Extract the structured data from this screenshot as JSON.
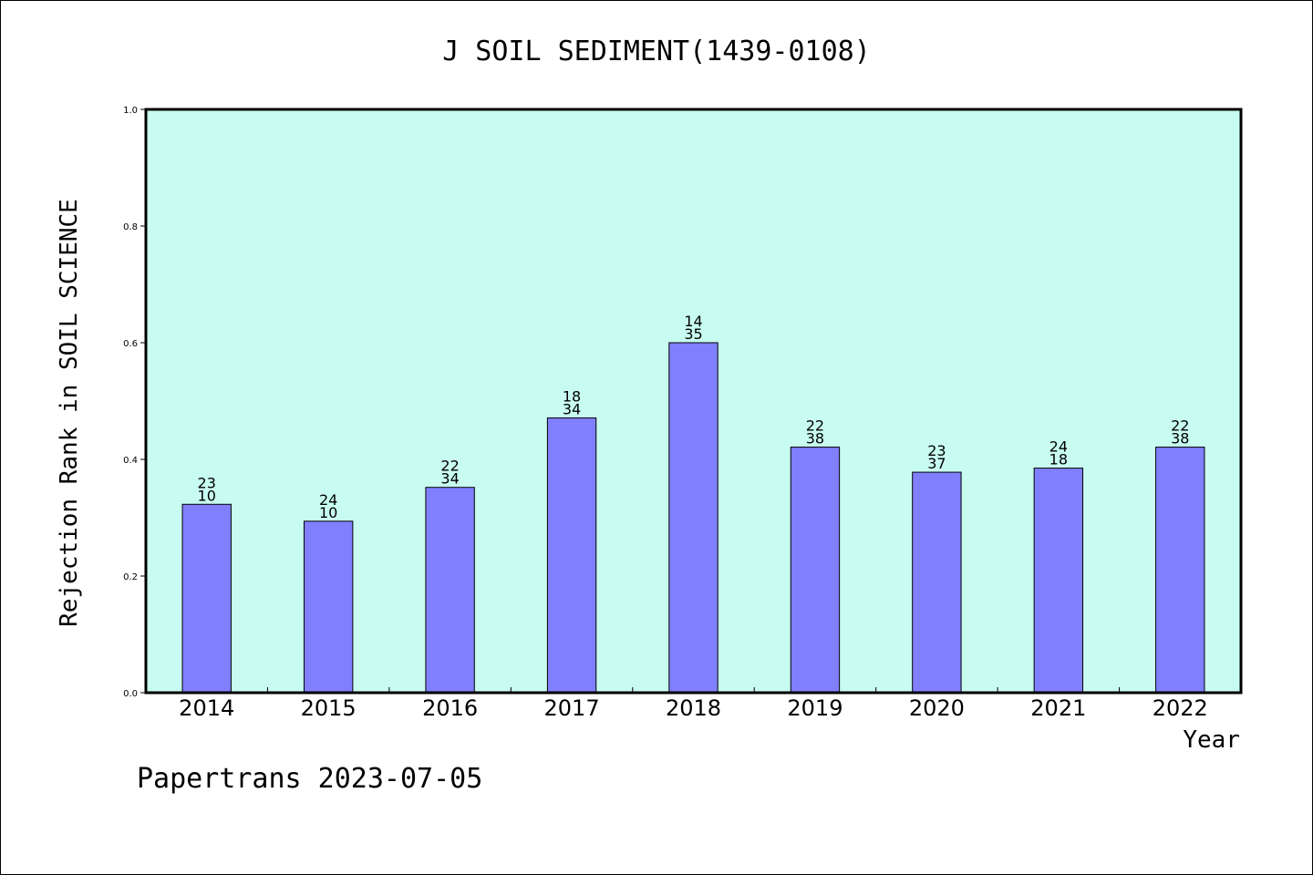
{
  "chart_data": {
    "type": "bar",
    "title": "J SOIL SEDIMENT(1439-0108)",
    "xlabel": "Year",
    "ylabel": "Rejection Rank in SOIL SCIENCE",
    "categories": [
      "2014",
      "2015",
      "2016",
      "2017",
      "2018",
      "2019",
      "2020",
      "2021",
      "2022"
    ],
    "values": [
      0.323,
      0.294,
      0.352,
      0.471,
      0.6,
      0.421,
      0.378,
      0.385,
      0.421
    ],
    "bar_labels": [
      [
        "23",
        "10"
      ],
      [
        "24",
        "10"
      ],
      [
        "22",
        "34"
      ],
      [
        "18",
        "34"
      ],
      [
        "14",
        "35"
      ],
      [
        "22",
        "38"
      ],
      [
        "23",
        "37"
      ],
      [
        "24",
        "18"
      ],
      [
        "22",
        "38"
      ]
    ],
    "ylim": [
      0.0,
      1.0
    ],
    "yticks": [
      "0.0",
      "0.2",
      "0.4",
      "0.6",
      "0.8",
      "1.0"
    ],
    "grid": false,
    "colors": {
      "plot_background": "#c8fcf0",
      "bar_fill": "#8080ff",
      "bar_stroke": "#000000",
      "axis": "#000000"
    }
  },
  "footer": {
    "text": "Papertrans 2023-07-05"
  }
}
